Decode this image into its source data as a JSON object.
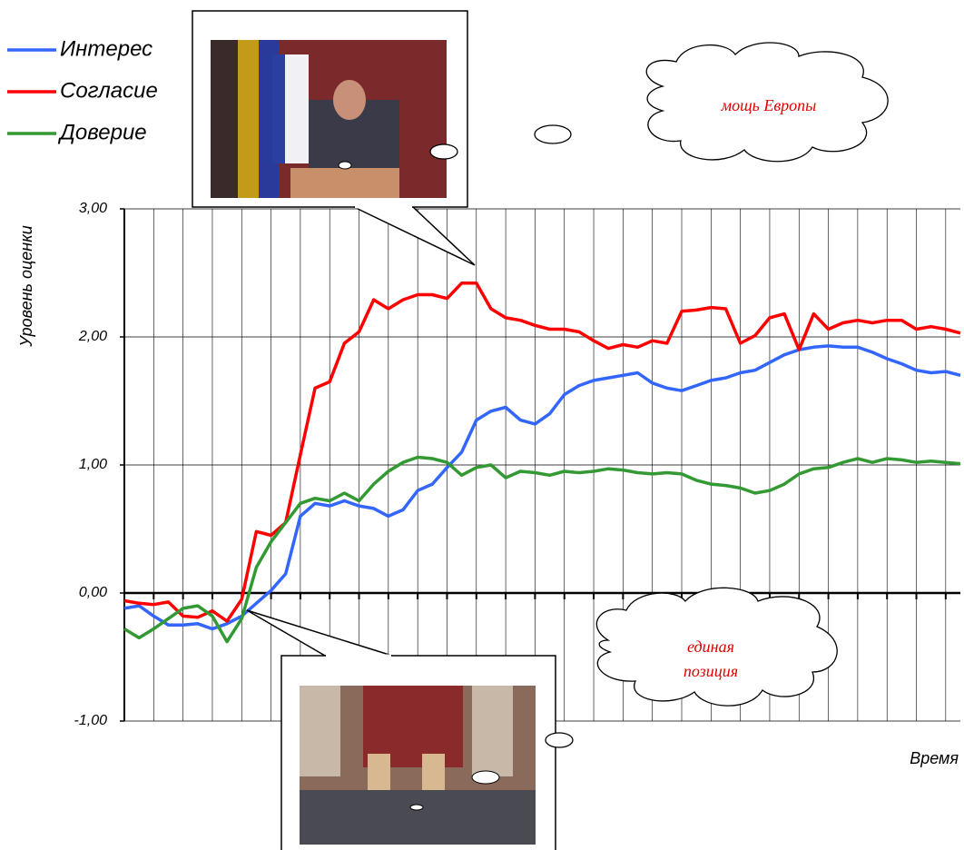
{
  "chart_data": {
    "type": "line",
    "y_label": "Уровень оценки",
    "x_label": "Время",
    "ylim": [
      -1,
      3
    ],
    "yticks": [
      {
        "value": 3,
        "label": "3,00"
      },
      {
        "value": 2,
        "label": "2,00"
      },
      {
        "value": 1,
        "label": "1,00"
      },
      {
        "value": 0,
        "label": "0,00"
      },
      {
        "value": -1,
        "label": "-1,00"
      }
    ],
    "grid": true,
    "legend": "top-left",
    "categories": [
      null,
      null,
      null,
      null,
      null,
      null,
      null,
      null,
      null,
      null,
      null,
      null,
      null,
      null,
      null,
      null,
      null,
      null,
      null,
      null,
      null,
      null,
      null,
      null,
      null,
      null,
      null,
      null,
      null,
      null,
      null,
      null,
      null,
      null,
      null,
      null,
      null,
      null,
      null,
      null,
      null,
      null,
      null,
      null,
      null,
      null,
      null,
      null,
      null,
      null,
      null,
      null,
      null,
      null,
      null,
      null,
      null,
      null
    ],
    "series": [
      {
        "name": "Интерес",
        "color": "#3366ff",
        "values": [
          -0.12,
          -0.1,
          -0.18,
          -0.25,
          -0.25,
          -0.24,
          -0.28,
          -0.24,
          -0.18,
          -0.08,
          0.02,
          0.15,
          0.6,
          0.7,
          0.68,
          0.72,
          0.68,
          0.66,
          0.6,
          0.65,
          0.8,
          0.85,
          0.98,
          1.1,
          1.35,
          1.42,
          1.45,
          1.35,
          1.32,
          1.4,
          1.55,
          1.62,
          1.66,
          1.68,
          1.7,
          1.72,
          1.64,
          1.6,
          1.58,
          1.62,
          1.66,
          1.68,
          1.72,
          1.74,
          1.8,
          1.86,
          1.9,
          1.92,
          1.93,
          1.92,
          1.92,
          1.88,
          1.83,
          1.79,
          1.74,
          1.72,
          1.73,
          1.7
        ]
      },
      {
        "name": "Согласие",
        "color": "#ff0000",
        "values": [
          -0.06,
          -0.08,
          -0.09,
          -0.07,
          -0.18,
          -0.19,
          -0.14,
          -0.22,
          -0.05,
          0.48,
          0.45,
          0.55,
          1.08,
          1.6,
          1.65,
          1.95,
          2.04,
          2.29,
          2.22,
          2.29,
          2.33,
          2.33,
          2.3,
          2.42,
          2.42,
          2.22,
          2.15,
          2.13,
          2.09,
          2.06,
          2.06,
          2.04,
          1.97,
          1.91,
          1.94,
          1.92,
          1.97,
          1.95,
          2.2,
          2.21,
          2.23,
          2.22,
          1.95,
          2.01,
          2.15,
          2.18,
          1.9,
          2.18,
          2.06,
          2.11,
          2.13,
          2.11,
          2.13,
          2.13,
          2.06,
          2.08,
          2.06,
          2.03
        ]
      },
      {
        "name": "Доверие",
        "color": "#339933",
        "values": [
          -0.28,
          -0.35,
          -0.28,
          -0.2,
          -0.12,
          -0.1,
          -0.18,
          -0.38,
          -0.2,
          0.2,
          0.4,
          0.55,
          0.7,
          0.74,
          0.72,
          0.78,
          0.72,
          0.85,
          0.95,
          1.02,
          1.06,
          1.05,
          1.02,
          0.92,
          0.98,
          1.0,
          0.9,
          0.95,
          0.94,
          0.92,
          0.95,
          0.94,
          0.95,
          0.97,
          0.96,
          0.94,
          0.93,
          0.94,
          0.93,
          0.88,
          0.85,
          0.84,
          0.82,
          0.78,
          0.8,
          0.85,
          0.93,
          0.97,
          0.98,
          1.02,
          1.05,
          1.02,
          1.05,
          1.04,
          1.02,
          1.03,
          1.02,
          1.01
        ]
      }
    ],
    "annotations": [
      {
        "lines": [
          "мощь Европы"
        ]
      },
      {
        "lines": [
          "единая",
          "позиция"
        ]
      }
    ]
  }
}
